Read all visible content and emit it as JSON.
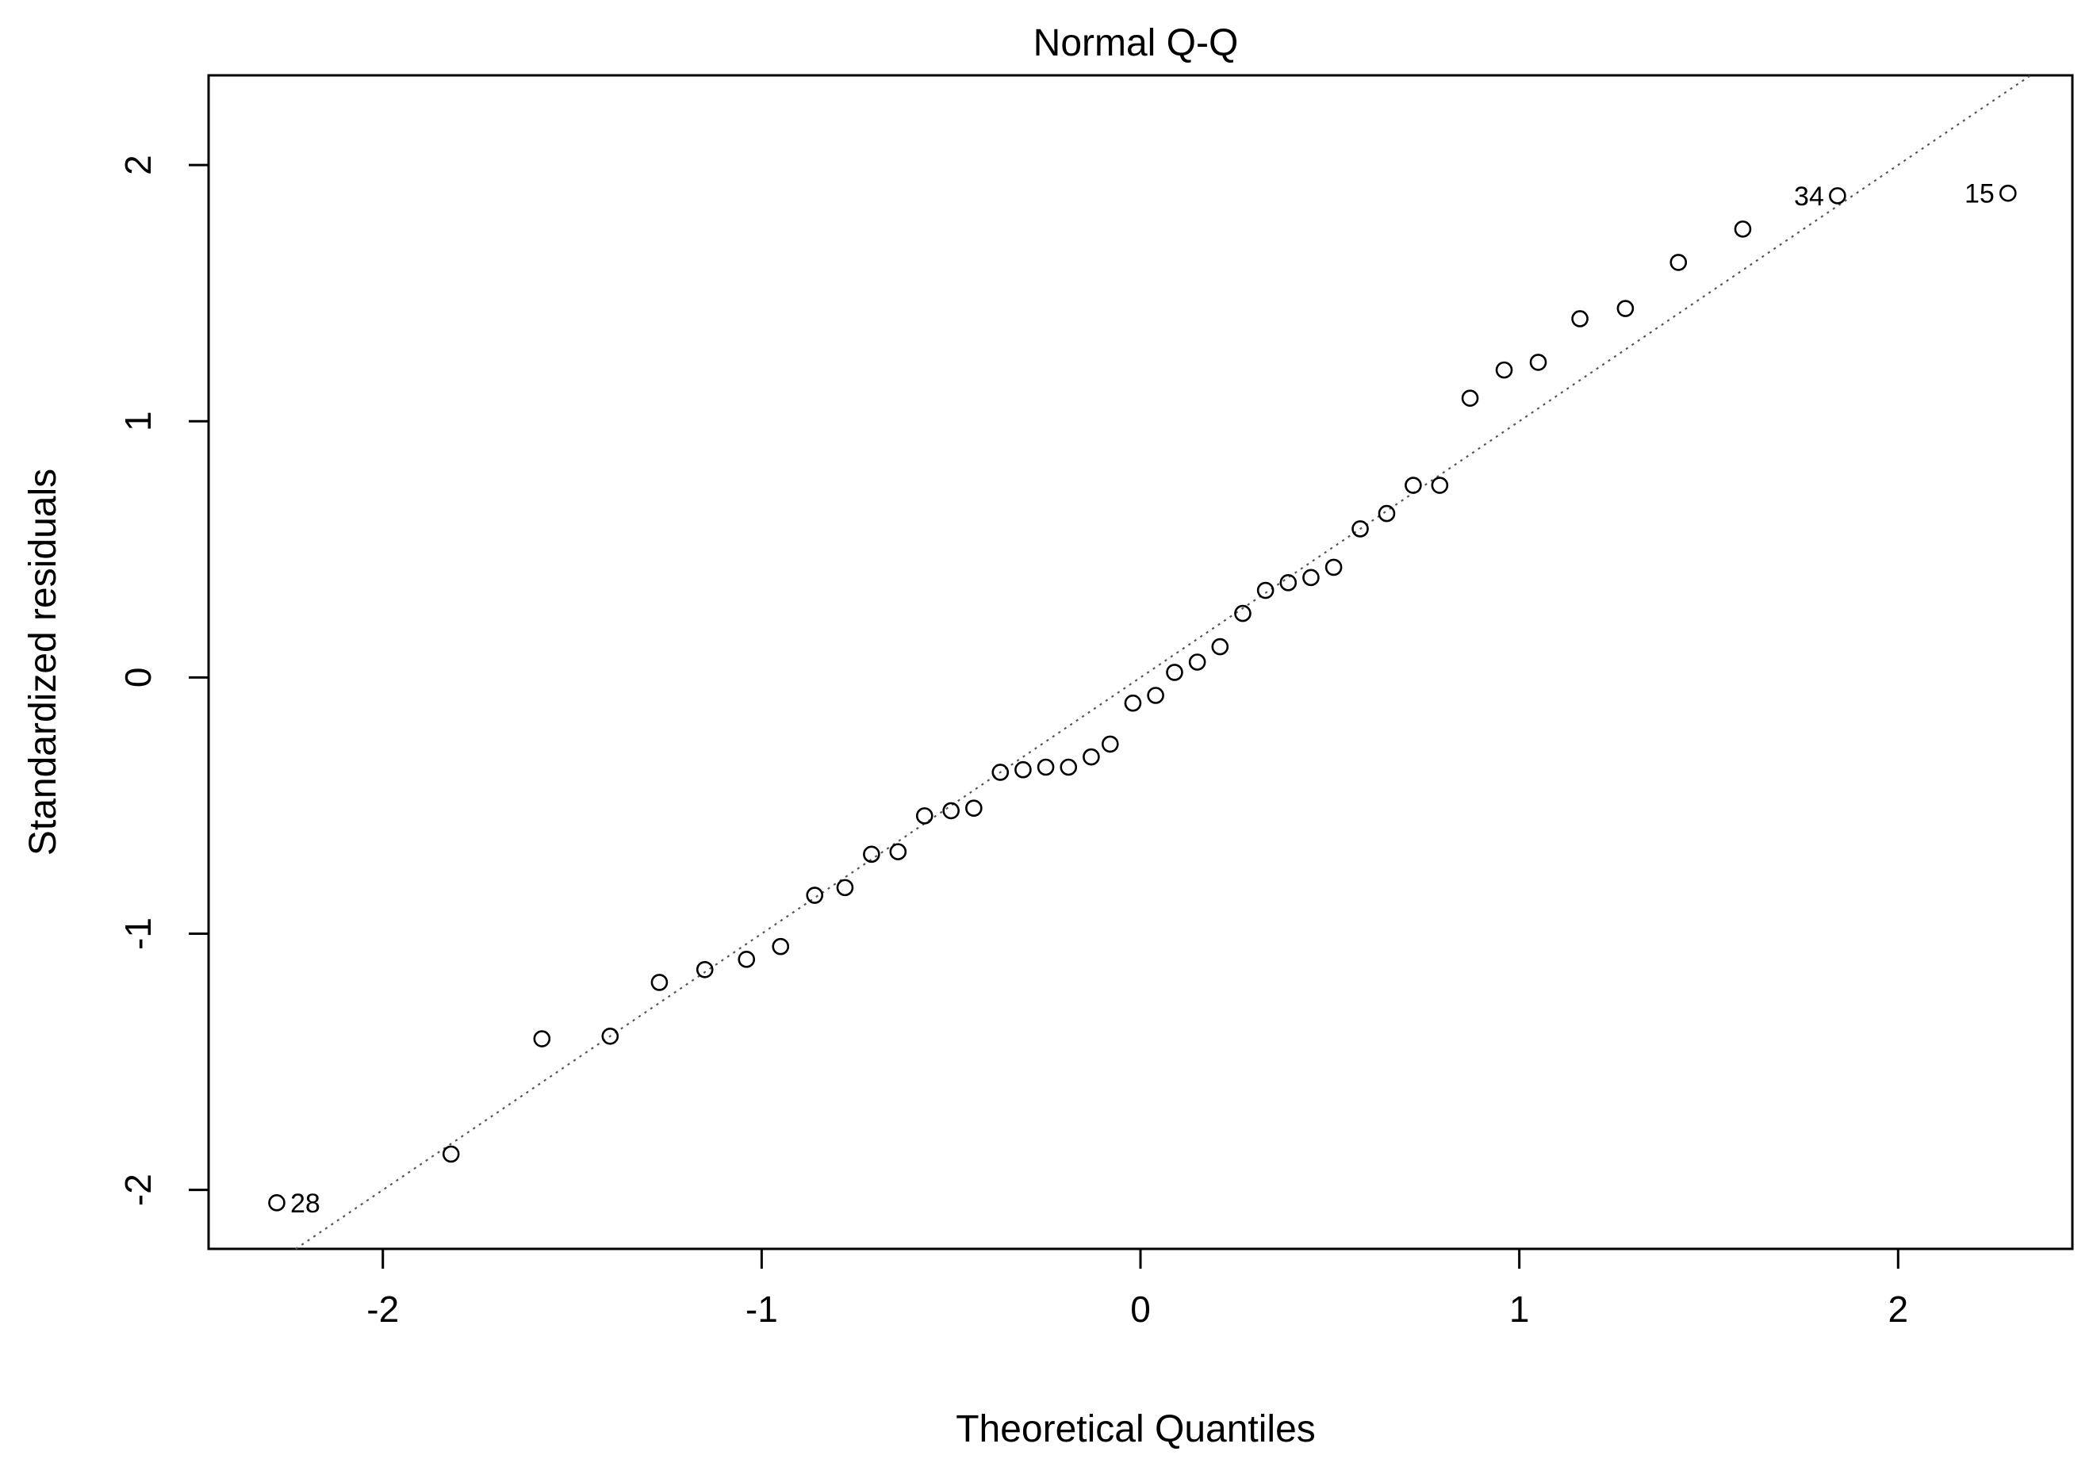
{
  "chart_data": {
    "type": "scatter",
    "title": "Normal Q-Q",
    "xlabel": "Theoretical Quantiles",
    "ylabel": "Standardized residuals",
    "xlim": [
      -2.46,
      2.46
    ],
    "ylim": [
      -2.23,
      2.35
    ],
    "xticks": [
      -2,
      -1,
      0,
      1,
      2
    ],
    "yticks": [
      -2,
      -1,
      0,
      1,
      2
    ],
    "grid": false,
    "marker": "open-circle",
    "points": [
      {
        "x": -2.28,
        "y": -2.05,
        "label": "28"
      },
      {
        "x": -1.82,
        "y": -1.86
      },
      {
        "x": -1.58,
        "y": -1.41
      },
      {
        "x": -1.4,
        "y": -1.4
      },
      {
        "x": -1.27,
        "y": -1.19
      },
      {
        "x": -1.15,
        "y": -1.14
      },
      {
        "x": -1.04,
        "y": -1.1
      },
      {
        "x": -0.95,
        "y": -1.05
      },
      {
        "x": -0.86,
        "y": -0.85
      },
      {
        "x": -0.78,
        "y": -0.82
      },
      {
        "x": -0.71,
        "y": -0.69
      },
      {
        "x": -0.64,
        "y": -0.68
      },
      {
        "x": -0.57,
        "y": -0.54
      },
      {
        "x": -0.5,
        "y": -0.52
      },
      {
        "x": -0.44,
        "y": -0.51
      },
      {
        "x": -0.37,
        "y": -0.37
      },
      {
        "x": -0.31,
        "y": -0.36
      },
      {
        "x": -0.25,
        "y": -0.35
      },
      {
        "x": -0.19,
        "y": -0.35
      },
      {
        "x": -0.13,
        "y": -0.31
      },
      {
        "x": -0.08,
        "y": -0.26
      },
      {
        "x": -0.02,
        "y": -0.1
      },
      {
        "x": 0.04,
        "y": -0.07
      },
      {
        "x": 0.09,
        "y": 0.02
      },
      {
        "x": 0.15,
        "y": 0.06
      },
      {
        "x": 0.21,
        "y": 0.12
      },
      {
        "x": 0.27,
        "y": 0.25
      },
      {
        "x": 0.33,
        "y": 0.34
      },
      {
        "x": 0.39,
        "y": 0.37
      },
      {
        "x": 0.45,
        "y": 0.39
      },
      {
        "x": 0.51,
        "y": 0.43
      },
      {
        "x": 0.58,
        "y": 0.58
      },
      {
        "x": 0.65,
        "y": 0.64
      },
      {
        "x": 0.72,
        "y": 0.75
      },
      {
        "x": 0.79,
        "y": 0.75
      },
      {
        "x": 0.87,
        "y": 1.09
      },
      {
        "x": 0.96,
        "y": 1.2
      },
      {
        "x": 1.05,
        "y": 1.23
      },
      {
        "x": 1.16,
        "y": 1.4
      },
      {
        "x": 1.28,
        "y": 1.44
      },
      {
        "x": 1.42,
        "y": 1.62
      },
      {
        "x": 1.59,
        "y": 1.75
      },
      {
        "x": 1.84,
        "y": 1.88,
        "label": "34"
      },
      {
        "x": 2.29,
        "y": 1.89,
        "label": "15"
      }
    ],
    "reference_line": {
      "slope": 1.0,
      "intercept": 0.0,
      "style": "dotted",
      "color": "#555555"
    }
  }
}
